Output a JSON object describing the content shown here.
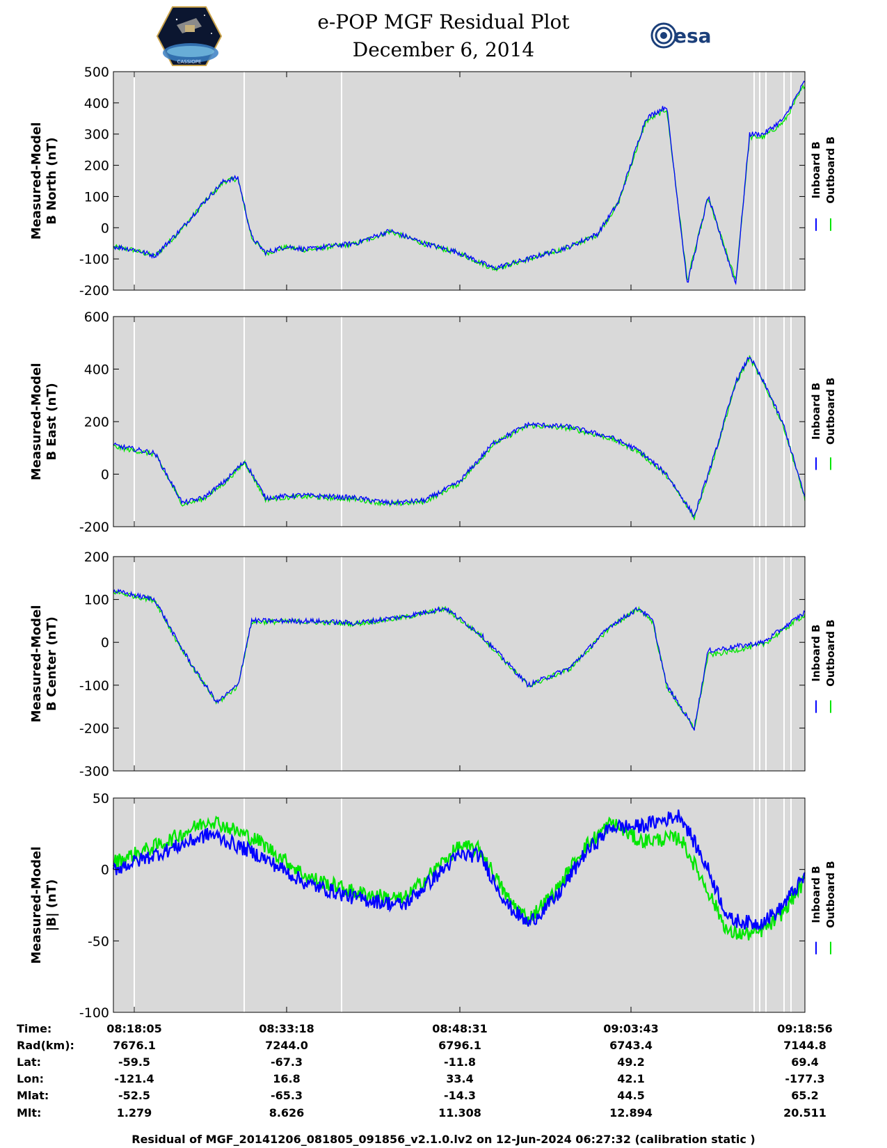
{
  "header": {
    "title_line1": "e-POP MGF Residual Plot",
    "title_line2": "December 6, 2014",
    "left_logo": "cassiope-mission-logo",
    "left_logo_text": "CASSIOPE",
    "right_logo": "esa-logo",
    "right_logo_text": "esa"
  },
  "colors": {
    "inboard": "#0000ff",
    "outboard": "#00e600",
    "panel_bg": "#d9d9d9",
    "gap_line": "#ffffff"
  },
  "legend": {
    "inboard": "Inboard B",
    "outboard": "Outboard B"
  },
  "chart_data": [
    {
      "type": "line",
      "ylabel": [
        "Measured-Model",
        "B North (nT)"
      ],
      "ylim": [
        -200,
        500
      ],
      "yticks": [
        -200,
        -100,
        0,
        100,
        200,
        300,
        400,
        500
      ],
      "x": [
        0,
        0.03,
        0.06,
        0.1,
        0.13,
        0.16,
        0.18,
        0.2,
        0.22,
        0.25,
        0.28,
        0.31,
        0.35,
        0.4,
        0.45,
        0.5,
        0.55,
        0.6,
        0.63,
        0.66,
        0.7,
        0.73,
        0.77,
        0.8,
        0.83,
        0.86,
        0.9,
        0.92,
        0.94,
        0.97,
        1.0
      ],
      "series": [
        {
          "name": "Inboard B",
          "values": [
            -60,
            -70,
            -90,
            0,
            80,
            150,
            160,
            -30,
            -80,
            -60,
            -70,
            -60,
            -50,
            -10,
            -50,
            -80,
            -130,
            -100,
            -80,
            -60,
            -20,
            80,
            350,
            390,
            -180,
            100,
            -180,
            300,
            300,
            350,
            470
          ]
        },
        {
          "name": "Outboard B",
          "values": [
            -62,
            -72,
            -92,
            -2,
            78,
            148,
            158,
            -32,
            -82,
            -62,
            -72,
            -62,
            -52,
            -12,
            -52,
            -82,
            -132,
            -102,
            -82,
            -62,
            -22,
            78,
            340,
            380,
            -170,
            95,
            -170,
            290,
            290,
            340,
            460
          ]
        }
      ]
    },
    {
      "type": "line",
      "ylabel": [
        "Measured-Model",
        "B East (nT)"
      ],
      "ylim": [
        -200,
        600
      ],
      "yticks": [
        -200,
        0,
        200,
        400,
        600
      ],
      "x": [
        0,
        0.06,
        0.1,
        0.13,
        0.16,
        0.19,
        0.22,
        0.27,
        0.35,
        0.4,
        0.45,
        0.5,
        0.55,
        0.6,
        0.66,
        0.72,
        0.76,
        0.8,
        0.84,
        0.87,
        0.9,
        0.92,
        0.95,
        0.97,
        1.0
      ],
      "series": [
        {
          "name": "Inboard B",
          "values": [
            110,
            80,
            -110,
            -90,
            -30,
            50,
            -90,
            -80,
            -90,
            -110,
            -100,
            -30,
            120,
            190,
            180,
            140,
            90,
            0,
            -160,
            80,
            350,
            450,
            300,
            180,
            -90
          ]
        },
        {
          "name": "Outboard B",
          "values": [
            105,
            75,
            -115,
            -95,
            -35,
            45,
            -95,
            -85,
            -95,
            -115,
            -105,
            -35,
            115,
            185,
            175,
            135,
            85,
            -5,
            -165,
            75,
            345,
            445,
            295,
            175,
            -95
          ]
        }
      ]
    },
    {
      "type": "line",
      "ylabel": [
        "Measured-Model",
        "B Center (nT)"
      ],
      "ylim": [
        -300,
        200
      ],
      "yticks": [
        -300,
        -200,
        -100,
        0,
        100,
        200
      ],
      "x": [
        0,
        0.06,
        0.09,
        0.12,
        0.15,
        0.18,
        0.2,
        0.22,
        0.28,
        0.35,
        0.42,
        0.48,
        0.53,
        0.6,
        0.66,
        0.72,
        0.76,
        0.78,
        0.8,
        0.84,
        0.86,
        0.88,
        0.94,
        1.0
      ],
      "series": [
        {
          "name": "Inboard B",
          "values": [
            120,
            100,
            10,
            -70,
            -140,
            -100,
            50,
            50,
            50,
            45,
            60,
            80,
            20,
            -100,
            -60,
            40,
            80,
            50,
            -100,
            -200,
            -20,
            -15,
            0,
            70
          ]
        },
        {
          "name": "Outboard B",
          "values": [
            118,
            98,
            8,
            -72,
            -142,
            -102,
            48,
            48,
            48,
            43,
            58,
            78,
            18,
            -102,
            -62,
            38,
            78,
            48,
            -102,
            -202,
            -30,
            -25,
            -5,
            65
          ]
        }
      ]
    },
    {
      "type": "line",
      "ylabel": [
        "Measured-Model",
        "|B| (nT)"
      ],
      "ylim": [
        -100,
        50
      ],
      "yticks": [
        -100,
        -50,
        0,
        50
      ],
      "x": [
        0,
        0.07,
        0.14,
        0.21,
        0.28,
        0.35,
        0.42,
        0.5,
        0.53,
        0.57,
        0.6,
        0.64,
        0.68,
        0.72,
        0.76,
        0.82,
        0.86,
        0.89,
        0.93,
        0.96,
        1.0
      ],
      "series": [
        {
          "name": "Inboard B",
          "values": [
            0,
            12,
            25,
            10,
            -10,
            -20,
            -25,
            10,
            10,
            -25,
            -38,
            -20,
            10,
            30,
            30,
            38,
            0,
            -35,
            -38,
            -30,
            -5
          ]
        },
        {
          "name": "Outboard B",
          "values": [
            5,
            18,
            35,
            20,
            -5,
            -16,
            -21,
            16,
            14,
            -20,
            -35,
            -15,
            15,
            33,
            20,
            22,
            -15,
            -45,
            -45,
            -35,
            -8
          ]
        }
      ]
    }
  ],
  "x_axis": {
    "rows": [
      {
        "label": "Time:",
        "values": [
          "08:18:05",
          "08:33:18",
          "08:48:31",
          "09:03:43",
          "09:18:56"
        ]
      },
      {
        "label": "Rad(km):",
        "values": [
          "7676.1",
          "7244.0",
          "6796.1",
          "6743.4",
          "7144.8"
        ]
      },
      {
        "label": "Lat:",
        "values": [
          "-59.5",
          "-67.3",
          "-11.8",
          "49.2",
          "69.4"
        ]
      },
      {
        "label": "Lon:",
        "values": [
          "-121.4",
          "16.8",
          "33.4",
          "42.1",
          "-177.3"
        ]
      },
      {
        "label": "Mlat:",
        "values": [
          "-52.5",
          "-65.3",
          "-14.3",
          "44.5",
          "65.2"
        ]
      },
      {
        "label": "Mlt:",
        "values": [
          "1.279",
          "8.626",
          "11.308",
          "12.894",
          "20.511"
        ]
      }
    ]
  },
  "footer": {
    "text": "Residual of MGF_20141206_081805_091856_v2.1.0.lv2 on 12-Jun-2024 06:27:32 (calibration static )"
  }
}
